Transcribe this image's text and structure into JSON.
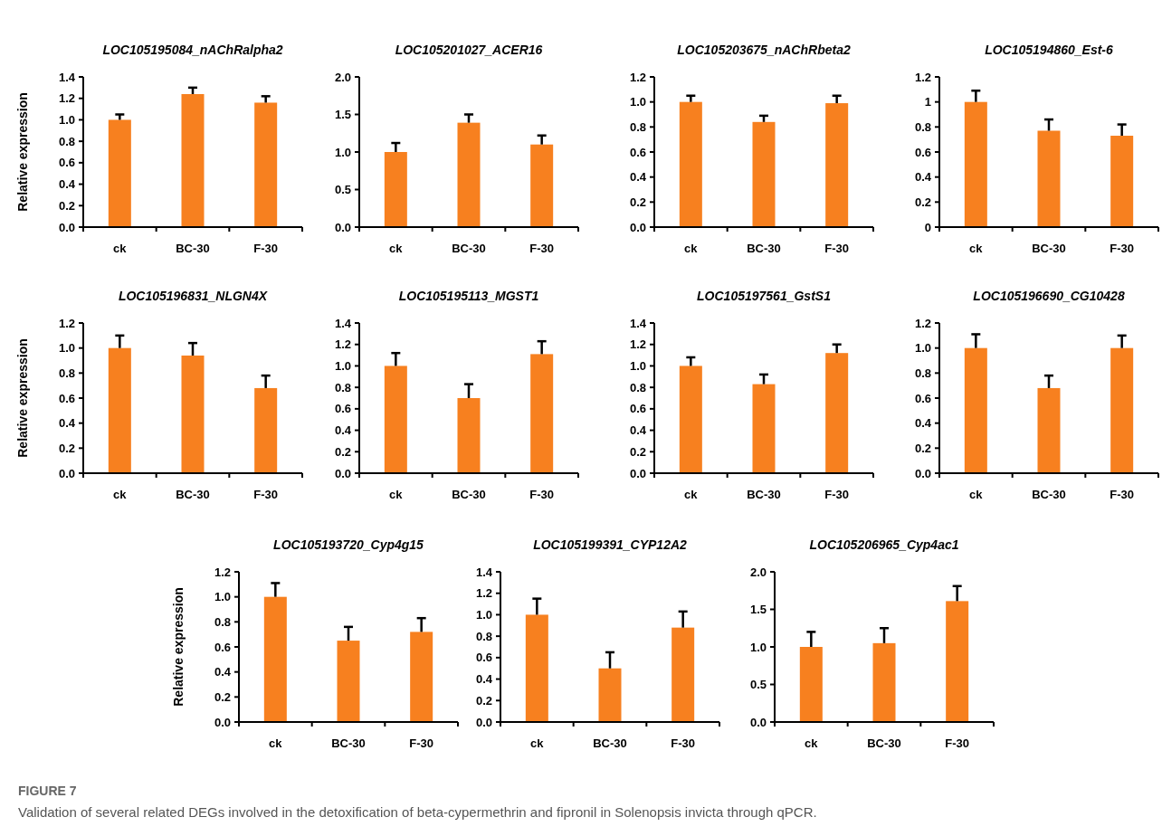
{
  "chart_data": [
    {
      "type": "bar",
      "title": "LOC105195084_nAChRalpha2",
      "ylabel": "Relative expression",
      "categories": [
        "ck",
        "BC-30",
        "F-30"
      ],
      "values": [
        1.0,
        1.24,
        1.16
      ],
      "errors": [
        [
          1.0,
          1.05
        ],
        [
          1.24,
          1.3
        ],
        [
          1.16,
          1.22
        ]
      ],
      "color": "#f7801f",
      "ylim": [
        0,
        1.4
      ],
      "yticks": [
        {
          "value": 0,
          "label": "0.0"
        },
        {
          "value": 0.2,
          "label": "0.2"
        },
        {
          "value": 0.4,
          "label": "0.4"
        },
        {
          "value": 0.6,
          "label": "0.6"
        },
        {
          "value": 0.8,
          "label": "0.8"
        },
        {
          "value": 1,
          "label": "1.0"
        },
        {
          "value": 1.2,
          "label": "1.2"
        },
        {
          "value": 1.4,
          "label": "1.4"
        }
      ]
    },
    {
      "type": "bar",
      "title": "LOC105201027_ACER16",
      "categories": [
        "ck",
        "BC-30",
        "F-30"
      ],
      "values": [
        1.0,
        1.39,
        1.1
      ],
      "errors": [
        [
          1.0,
          1.12
        ],
        [
          1.39,
          1.5
        ],
        [
          1.1,
          1.22
        ]
      ],
      "color": "#f7801f",
      "ylim": [
        0,
        2
      ],
      "yticks": [
        {
          "value": 0,
          "label": "0.0"
        },
        {
          "value": 0.5,
          "label": "0.5"
        },
        {
          "value": 1,
          "label": "1.0"
        },
        {
          "value": 1.5,
          "label": "1.5"
        },
        {
          "value": 2,
          "label": "2.0"
        }
      ]
    },
    {
      "type": "bar",
      "title": "LOC105203675_nAChRbeta2",
      "categories": [
        "ck",
        "BC-30",
        "F-30"
      ],
      "values": [
        1.0,
        0.84,
        0.99
      ],
      "errors": [
        [
          1.0,
          1.05
        ],
        [
          0.84,
          0.89
        ],
        [
          0.99,
          1.05
        ]
      ],
      "color": "#f7801f",
      "ylim": [
        0,
        1.2
      ],
      "yticks": [
        {
          "value": 0,
          "label": "0.0"
        },
        {
          "value": 0.2,
          "label": "0.2"
        },
        {
          "value": 0.4,
          "label": "0.4"
        },
        {
          "value": 0.6,
          "label": "0.6"
        },
        {
          "value": 0.8,
          "label": "0.8"
        },
        {
          "value": 1,
          "label": "1.0"
        },
        {
          "value": 1.2,
          "label": "1.2"
        }
      ]
    },
    {
      "type": "bar",
      "title": "LOC105194860_Est-6",
      "categories": [
        "ck",
        "BC-30",
        "F-30"
      ],
      "values": [
        1.0,
        0.77,
        0.73
      ],
      "errors": [
        [
          1.0,
          1.09
        ],
        [
          0.77,
          0.86
        ],
        [
          0.73,
          0.82
        ]
      ],
      "color": "#f7801f",
      "ylim": [
        0,
        1.2
      ],
      "yticks": [
        0,
        0.2,
        0.4,
        0.6,
        0.8,
        1,
        1.2
      ]
    },
    {
      "type": "bar",
      "title": "LOC105196831_NLGN4X",
      "ylabel": "Relative expression",
      "categories": [
        "ck",
        "BC-30",
        "F-30"
      ],
      "values": [
        1.0,
        0.94,
        0.68
      ],
      "errors": [
        [
          1.0,
          1.1
        ],
        [
          0.94,
          1.04
        ],
        [
          0.68,
          0.78
        ]
      ],
      "color": "#f7801f",
      "ylim": [
        0,
        1.2
      ],
      "yticks": [
        {
          "value": 0,
          "label": "0.0"
        },
        {
          "value": 0.2,
          "label": "0.2"
        },
        {
          "value": 0.4,
          "label": "0.4"
        },
        {
          "value": 0.6,
          "label": "0.6"
        },
        {
          "value": 0.8,
          "label": "0.8"
        },
        {
          "value": 1,
          "label": "1.0"
        },
        {
          "value": 1.2,
          "label": "1.2"
        }
      ]
    },
    {
      "type": "bar",
      "title": "LOC105195113_MGST1",
      "categories": [
        "ck",
        "BC-30",
        "F-30"
      ],
      "values": [
        1.0,
        0.7,
        1.11
      ],
      "errors": [
        [
          1.0,
          1.12
        ],
        [
          0.7,
          0.83
        ],
        [
          1.11,
          1.23
        ]
      ],
      "color": "#f7801f",
      "ylim": [
        0,
        1.4
      ],
      "yticks": [
        {
          "value": 0,
          "label": "0.0"
        },
        {
          "value": 0.2,
          "label": "0.2"
        },
        {
          "value": 0.4,
          "label": "0.4"
        },
        {
          "value": 0.6,
          "label": "0.6"
        },
        {
          "value": 0.8,
          "label": "0.8"
        },
        {
          "value": 1,
          "label": "1.0"
        },
        {
          "value": 1.2,
          "label": "1.2"
        },
        {
          "value": 1.4,
          "label": "1.4"
        }
      ]
    },
    {
      "type": "bar",
      "title": "LOC105197561_GstS1",
      "categories": [
        "ck",
        "BC-30",
        "F-30"
      ],
      "values": [
        1.0,
        0.83,
        1.12
      ],
      "errors": [
        [
          1.0,
          1.08
        ],
        [
          0.83,
          0.92
        ],
        [
          1.12,
          1.2
        ]
      ],
      "color": "#f7801f",
      "ylim": [
        0,
        1.4
      ],
      "yticks": [
        {
          "value": 0,
          "label": "0.0"
        },
        {
          "value": 0.2,
          "label": "0.2"
        },
        {
          "value": 0.4,
          "label": "0.4"
        },
        {
          "value": 0.6,
          "label": "0.6"
        },
        {
          "value": 0.8,
          "label": "0.8"
        },
        {
          "value": 1,
          "label": "1.0"
        },
        {
          "value": 1.2,
          "label": "1.2"
        },
        {
          "value": 1.4,
          "label": "1.4"
        }
      ]
    },
    {
      "type": "bar",
      "title": "LOC105196690_CG10428",
      "categories": [
        "ck",
        "BC-30",
        "F-30"
      ],
      "values": [
        1.0,
        0.68,
        1.0
      ],
      "errors": [
        [
          1.0,
          1.11
        ],
        [
          0.68,
          0.78
        ],
        [
          1.0,
          1.1
        ]
      ],
      "color": "#f7801f",
      "ylim": [
        0,
        1.2
      ],
      "yticks": [
        {
          "value": 0,
          "label": "0.0"
        },
        {
          "value": 0.2,
          "label": "0.2"
        },
        {
          "value": 0.4,
          "label": "0.4"
        },
        {
          "value": 0.6,
          "label": "0.6"
        },
        {
          "value": 0.8,
          "label": "0.8"
        },
        {
          "value": 1,
          "label": "1.0"
        },
        {
          "value": 1.2,
          "label": "1.2"
        }
      ]
    },
    {
      "type": "bar",
      "title": "LOC105193720_Cyp4g15",
      "ylabel": "Relative expression",
      "categories": [
        "ck",
        "BC-30",
        "F-30"
      ],
      "values": [
        1.0,
        0.65,
        0.72
      ],
      "errors": [
        [
          1.0,
          1.11
        ],
        [
          0.65,
          0.76
        ],
        [
          0.72,
          0.83
        ]
      ],
      "color": "#f7801f",
      "ylim": [
        0,
        1.2
      ],
      "yticks": [
        {
          "value": 0,
          "label": "0.0"
        },
        {
          "value": 0.2,
          "label": "0.2"
        },
        {
          "value": 0.4,
          "label": "0.4"
        },
        {
          "value": 0.6,
          "label": "0.6"
        },
        {
          "value": 0.8,
          "label": "0.8"
        },
        {
          "value": 1,
          "label": "1.0"
        },
        {
          "value": 1.2,
          "label": "1.2"
        }
      ]
    },
    {
      "type": "bar",
      "title": "LOC105199391_CYP12A2",
      "categories": [
        "ck",
        "BC-30",
        "F-30"
      ],
      "values": [
        1.0,
        0.5,
        0.88
      ],
      "errors": [
        [
          1.0,
          1.15
        ],
        [
          0.5,
          0.65
        ],
        [
          0.88,
          1.03
        ]
      ],
      "color": "#f7801f",
      "ylim": [
        0,
        1.4
      ],
      "yticks": [
        {
          "value": 0,
          "label": "0.0"
        },
        {
          "value": 0.2,
          "label": "0.2"
        },
        {
          "value": 0.4,
          "label": "0.4"
        },
        {
          "value": 0.6,
          "label": "0.6"
        },
        {
          "value": 0.8,
          "label": "0.8"
        },
        {
          "value": 1,
          "label": "1.0"
        },
        {
          "value": 1.2,
          "label": "1.2"
        },
        {
          "value": 1.4,
          "label": "1.4"
        }
      ]
    },
    {
      "type": "bar",
      "title": "LOC105206965_Cyp4ac1",
      "categories": [
        "ck",
        "BC-30",
        "F-30"
      ],
      "values": [
        1.0,
        1.05,
        1.61
      ],
      "errors": [
        [
          1.0,
          1.2
        ],
        [
          1.05,
          1.25
        ],
        [
          1.61,
          1.81
        ]
      ],
      "color": "#f7801f",
      "ylim": [
        0,
        2
      ],
      "yticks": [
        {
          "value": 0,
          "label": "0.0"
        },
        {
          "value": 0.5,
          "label": "0.5"
        },
        {
          "value": 1,
          "label": "1.0"
        },
        {
          "value": 1.5,
          "label": "1.5"
        },
        {
          "value": 2,
          "label": "2.0"
        }
      ],
      "annotations": [
        "FIGURE 7",
        "Validation of several related DEGs involved in the detoxification of beta-cypermethrin and fipronil in Solenopsis invicta through qPCR."
      ]
    }
  ]
}
